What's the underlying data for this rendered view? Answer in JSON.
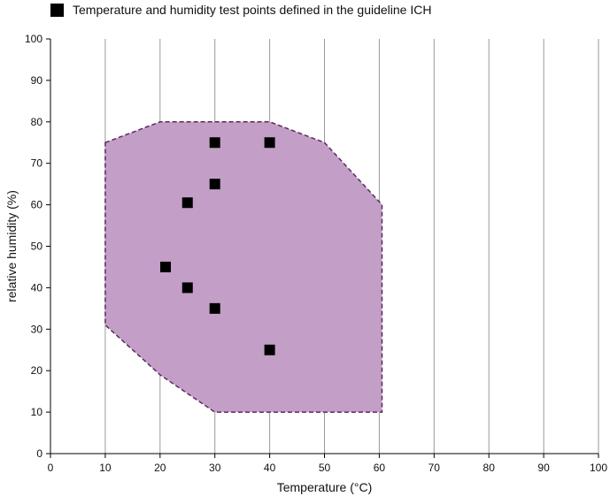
{
  "chart_data": {
    "type": "scatter",
    "legend": {
      "label": "Temperature and humidity test points defined in the guideline ICH",
      "placement": "top-left"
    },
    "xlabel": "Temperature (°C)",
    "ylabel": "relative humidity (%)",
    "xlim": [
      0,
      100
    ],
    "ylim": [
      0,
      100
    ],
    "xticks": [
      0,
      10,
      20,
      30,
      40,
      50,
      60,
      70,
      80,
      90,
      100
    ],
    "yticks": [
      0,
      10,
      20,
      30,
      40,
      50,
      60,
      70,
      80,
      90,
      100
    ],
    "grid": "vertical",
    "region": {
      "fill": "#c39fc8",
      "stroke": "#5b2a5e",
      "points": [
        [
          10,
          75
        ],
        [
          20,
          80
        ],
        [
          40,
          80
        ],
        [
          50,
          75
        ],
        [
          60.5,
          60
        ],
        [
          60.5,
          10
        ],
        [
          30,
          10
        ],
        [
          20,
          19
        ],
        [
          10,
          31
        ]
      ]
    },
    "series": [
      {
        "name": "Temperature and humidity test points defined in the guideline ICH",
        "color": "#000000",
        "points": [
          [
            30,
            75
          ],
          [
            40,
            75
          ],
          [
            30,
            65
          ],
          [
            25,
            60.5
          ],
          [
            21,
            45
          ],
          [
            25,
            40
          ],
          [
            30,
            35
          ],
          [
            40,
            25
          ]
        ]
      }
    ]
  }
}
